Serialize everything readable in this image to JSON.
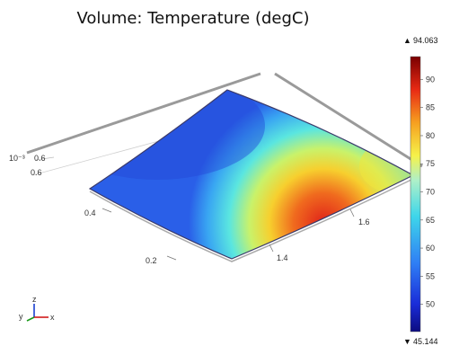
{
  "title": "Volume: Temperature (degC)",
  "axes": {
    "scale_exponent": "10⁻³",
    "y_ticks": [
      "0.6",
      "0.4",
      "0.2"
    ],
    "x_ticks": [
      "1.6",
      "1.4"
    ],
    "triad": {
      "x": "x",
      "y": "y",
      "z": "z"
    }
  },
  "colorbar": {
    "max_label": "94.063",
    "min_label": "45.144",
    "max_arrow": "▲",
    "min_arrow": "▼",
    "min": 45.144,
    "max": 94.063,
    "ticks": [
      "90",
      "85",
      "80",
      "75",
      "70",
      "65",
      "60",
      "55",
      "50"
    ],
    "tick_values": [
      90,
      85,
      80,
      75,
      70,
      65,
      60,
      55,
      50
    ]
  },
  "colors": {
    "hot": "#e00000",
    "cold": "#1020d0"
  }
}
